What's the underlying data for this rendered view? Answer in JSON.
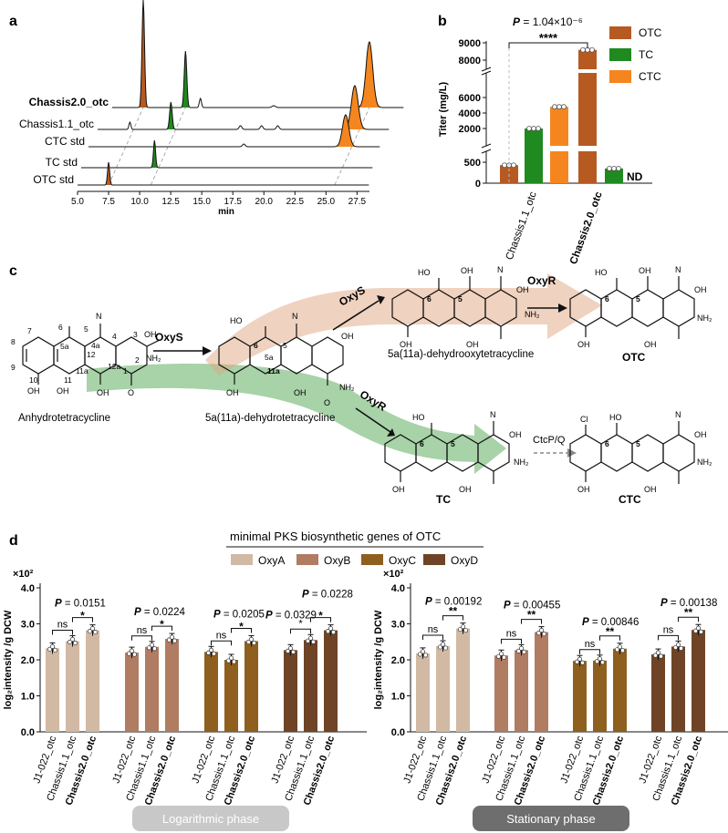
{
  "panel_letters": {
    "a": "a",
    "b": "b",
    "c": "c",
    "d": "d"
  },
  "colors": {
    "OTC": "#b65a22",
    "TC": "#1f8a1f",
    "CTC": "#f5861f",
    "OxyA": "#d2b9a3",
    "OxyB": "#b07c62",
    "OxyC": "#8e5f1f",
    "OxyD": "#6f4426",
    "green_arrow": "#3e9b3e",
    "orange_arrow": "#e0a67f"
  },
  "panel_a": {
    "traces": [
      "Chassis2.0_otc",
      "Chassis1.1_otc",
      "CTC std",
      "TC std",
      "OTC std"
    ],
    "x_ticks": [
      "5.0",
      "7.5",
      "10.0",
      "12.5",
      "15.0",
      "17.5",
      "20.0",
      "22.5",
      "25.0",
      "27.5"
    ],
    "xlabel": "min"
  },
  "chart_data": [
    {
      "type": "line",
      "panel": "a",
      "xlabel": "min",
      "xlim": [
        5.0,
        28.5
      ],
      "series": [
        {
          "name": "Chassis2.0_otc",
          "peaks": [
            {
              "x": 7.5,
              "color": "OTC"
            },
            {
              "x": 10.9,
              "color": "TC"
            },
            {
              "x": 12.1
            },
            {
              "x": 25.7,
              "color": "CTC"
            }
          ]
        },
        {
          "name": "Chassis1.1_otc",
          "peaks": [
            {
              "x": 7.6
            },
            {
              "x": 10.9,
              "color": "TC"
            },
            {
              "x": 25.7,
              "color": "CTC"
            }
          ]
        },
        {
          "name": "CTC std",
          "peaks": [
            {
              "x": 25.7,
              "color": "CTC"
            }
          ]
        },
        {
          "name": "TC std",
          "peaks": [
            {
              "x": 10.9,
              "color": "TC"
            }
          ]
        },
        {
          "name": "OTC std",
          "peaks": [
            {
              "x": 7.5,
              "color": "OTC"
            }
          ]
        }
      ]
    },
    {
      "type": "bar",
      "panel": "b",
      "ylabel": "Titer (mg/L)",
      "categories": [
        "Chassis1.1_otc",
        "Chassis2.0_otc"
      ],
      "y_ticks": [
        "0",
        "500",
        "2000",
        "4000",
        "6000",
        "8000",
        "9000"
      ],
      "series": [
        {
          "name": "OTC",
          "values": [
            430,
            8550
          ]
        },
        {
          "name": "TC",
          "values": [
            2000,
            350
          ]
        },
        {
          "name": "CTC",
          "values": [
            4800,
            null
          ]
        }
      ],
      "annotations": {
        "p_prefix": "P",
        "p_value": " = 1.04×10⁻⁶",
        "stars": "****",
        "nd": "ND"
      }
    },
    {
      "type": "bar",
      "panel": "d-logarithmic",
      "ylabel": "log₂intensity /g DCW",
      "y_multiplier": "×10²",
      "y_ticks": [
        "0.0",
        "1.0",
        "2.0",
        "3.0",
        "4.0"
      ],
      "ylim": [
        0,
        4.0
      ],
      "strains": [
        "J1-022_otc",
        "Chassis1.1_otc",
        "Chassis2.0_otc"
      ],
      "groups": [
        {
          "gene": "OxyA",
          "values": [
            2.32,
            2.52,
            2.82
          ],
          "p": "0.0151",
          "marks": [
            "ns",
            "*"
          ]
        },
        {
          "gene": "OxyB",
          "values": [
            2.2,
            2.36,
            2.58
          ],
          "p": "0.0224",
          "marks": [
            "ns",
            "*"
          ]
        },
        {
          "gene": "OxyC",
          "values": [
            2.22,
            2.0,
            2.52
          ],
          "p": "0.0205",
          "marks": [
            "ns",
            "*"
          ]
        },
        {
          "gene": "OxyD",
          "values": [
            2.27,
            2.55,
            2.82
          ],
          "p": "0.0228",
          "p2": "0.0329",
          "marks": [
            "*",
            "*"
          ]
        }
      ],
      "phase_label": "Logarithmic  phase"
    },
    {
      "type": "bar",
      "panel": "d-stationary",
      "ylabel": "log₂intensity /g DCW",
      "y_multiplier": "×10²",
      "y_ticks": [
        "0.0",
        "1.0",
        "2.0",
        "3.0",
        "4.0"
      ],
      "ylim": [
        0,
        4.0
      ],
      "strains": [
        "J1-022_otc",
        "Chassis1.1_otc",
        "Chassis2.0_otc"
      ],
      "groups": [
        {
          "gene": "OxyA",
          "values": [
            2.18,
            2.38,
            2.87
          ],
          "p": "0.00192",
          "marks": [
            "ns",
            "**"
          ]
        },
        {
          "gene": "OxyB",
          "values": [
            2.12,
            2.27,
            2.77
          ],
          "p": "0.00455",
          "marks": [
            "ns",
            "**"
          ]
        },
        {
          "gene": "OxyC",
          "values": [
            1.97,
            1.98,
            2.31
          ],
          "p": "0.00846",
          "marks": [
            "ns",
            "**"
          ]
        },
        {
          "gene": "OxyD",
          "values": [
            2.15,
            2.37,
            2.83
          ],
          "p": "0.00138",
          "marks": [
            "ns",
            "**"
          ]
        }
      ],
      "phase_label": "Stationary  phase"
    }
  ],
  "panel_c": {
    "compounds": {
      "atc": "Anhydrotetracycline",
      "dhtc": "5a(11a)-dehydrotetracycline",
      "dhotc": "5a(11a)-dehydrooxytetracycline",
      "otc": "OTC",
      "tc": "TC",
      "ctc": "CTC"
    },
    "enzymes": {
      "oxys1": "OxyS",
      "oxys2": "OxyS",
      "oxyr1": "OxyR",
      "oxyr2": "OxyR",
      "ctcpq": "CtcP/Q"
    },
    "atoms": {
      "oh": "OH",
      "nh2": "NH₂",
      "o": "O",
      "cl": "Cl",
      "ho": "HO",
      "n": "N"
    },
    "numbering": [
      "1",
      "2",
      "3",
      "4",
      "4a",
      "5",
      "5a",
      "6",
      "7",
      "8",
      "9",
      "10",
      "11",
      "11a",
      "12",
      "12a"
    ]
  },
  "panel_d": {
    "legend_title": "minimal PKS biosynthetic genes of OTC",
    "legend": [
      "OxyA",
      "OxyB",
      "OxyC",
      "OxyD"
    ],
    "p_prefix": "P"
  }
}
